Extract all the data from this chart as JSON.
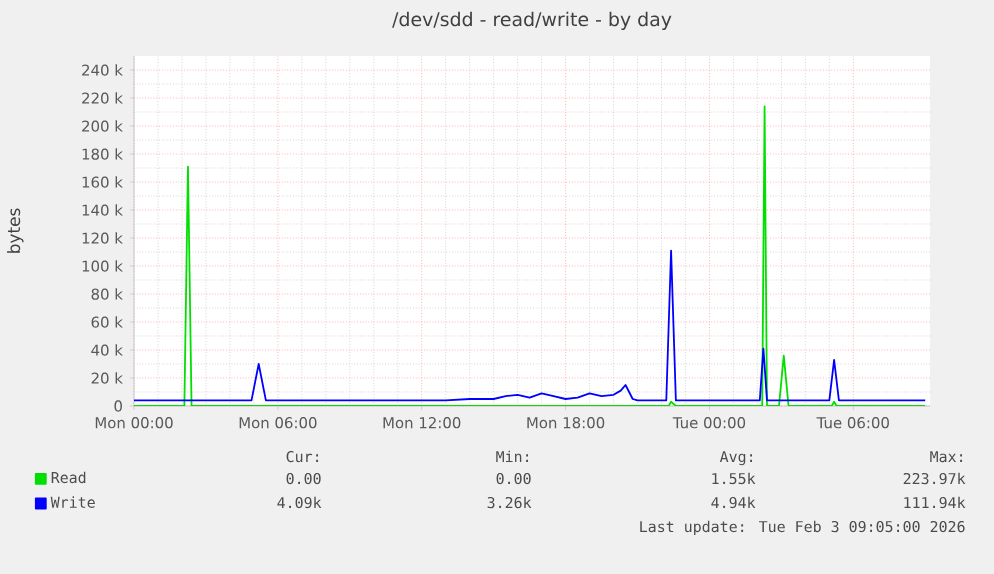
{
  "chart_data": {
    "type": "line",
    "title": "/dev/sdd - read/write - by day",
    "ylabel": "bytes",
    "xlim": [
      "2026-02-02T00:00",
      "2026-02-03T09:12"
    ],
    "ylim": [
      0,
      250000
    ],
    "xticks": [
      {
        "value": "2026-02-02T00:00",
        "label": "Mon 00:00"
      },
      {
        "value": "2026-02-02T06:00",
        "label": "Mon 06:00"
      },
      {
        "value": "2026-02-02T12:00",
        "label": "Mon 12:00"
      },
      {
        "value": "2026-02-02T18:00",
        "label": "Mon 18:00"
      },
      {
        "value": "2026-02-03T00:00",
        "label": "Tue 00:00"
      },
      {
        "value": "2026-02-03T06:00",
        "label": "Tue 06:00"
      }
    ],
    "yticks": [
      {
        "value": 0,
        "label": "0"
      },
      {
        "value": 20000,
        "label": "20 k"
      },
      {
        "value": 40000,
        "label": "40 k"
      },
      {
        "value": 60000,
        "label": "60 k"
      },
      {
        "value": 80000,
        "label": "80 k"
      },
      {
        "value": 100000,
        "label": "100 k"
      },
      {
        "value": 120000,
        "label": "120 k"
      },
      {
        "value": 140000,
        "label": "140 k"
      },
      {
        "value": 160000,
        "label": "160 k"
      },
      {
        "value": 180000,
        "label": "180 k"
      },
      {
        "value": 200000,
        "label": "200 k"
      },
      {
        "value": 220000,
        "label": "220 k"
      },
      {
        "value": 240000,
        "label": "240 k"
      }
    ],
    "grid": true,
    "legend": "bottom left",
    "marker": "none",
    "line_style": "solid",
    "series": [
      {
        "name": "Read",
        "color": "#00e000",
        "x": [
          "2026-02-02T00:00",
          "2026-02-02T02:06",
          "2026-02-02T02:15",
          "2026-02-02T02:24",
          "2026-02-02T22:18",
          "2026-02-02T22:24",
          "2026-02-02T22:36",
          "2026-02-03T02:12",
          "2026-02-03T02:18",
          "2026-02-03T02:24",
          "2026-02-03T02:54",
          "2026-02-03T03:06",
          "2026-02-03T03:18",
          "2026-02-03T05:06",
          "2026-02-03T05:12",
          "2026-02-03T05:18",
          "2026-02-03T09:00"
        ],
        "values": [
          0,
          0,
          171000,
          0,
          0,
          3000,
          0,
          0,
          214000,
          0,
          0,
          36000,
          0,
          0,
          3000,
          0,
          0
        ]
      },
      {
        "name": "Write",
        "color": "#0000ff",
        "x": [
          "2026-02-02T00:00",
          "2026-02-02T01:00",
          "2026-02-02T02:00",
          "2026-02-02T03:00",
          "2026-02-02T04:00",
          "2026-02-02T04:54",
          "2026-02-02T05:12",
          "2026-02-02T05:30",
          "2026-02-02T07:00",
          "2026-02-02T08:00",
          "2026-02-02T09:00",
          "2026-02-02T10:00",
          "2026-02-02T11:00",
          "2026-02-02T12:00",
          "2026-02-02T13:00",
          "2026-02-02T14:00",
          "2026-02-02T15:00",
          "2026-02-02T15:30",
          "2026-02-02T16:00",
          "2026-02-02T16:30",
          "2026-02-02T17:00",
          "2026-02-02T17:30",
          "2026-02-02T18:00",
          "2026-02-02T18:30",
          "2026-02-02T19:00",
          "2026-02-02T19:30",
          "2026-02-02T20:00",
          "2026-02-02T20:18",
          "2026-02-02T20:30",
          "2026-02-02T20:48",
          "2026-02-02T21:00",
          "2026-02-02T22:00",
          "2026-02-02T22:12",
          "2026-02-02T22:24",
          "2026-02-02T22:36",
          "2026-02-02T23:00",
          "2026-02-03T00:00",
          "2026-02-03T01:00",
          "2026-02-03T02:00",
          "2026-02-03T02:06",
          "2026-02-03T02:15",
          "2026-02-03T02:24",
          "2026-02-03T03:00",
          "2026-02-03T04:00",
          "2026-02-03T05:00",
          "2026-02-03T05:12",
          "2026-02-03T05:24",
          "2026-02-03T06:00",
          "2026-02-03T07:00",
          "2026-02-03T08:00",
          "2026-02-03T09:00"
        ],
        "values": [
          4000,
          4000,
          4000,
          4000,
          4000,
          4000,
          30000,
          4000,
          4000,
          4000,
          4000,
          4000,
          4000,
          4000,
          4000,
          5000,
          5000,
          7000,
          8000,
          6000,
          9000,
          7000,
          5000,
          6000,
          9000,
          7000,
          8000,
          11000,
          15000,
          5000,
          4000,
          4000,
          4000,
          111000,
          4000,
          4000,
          4000,
          4000,
          4000,
          4000,
          41000,
          4000,
          4000,
          4000,
          4000,
          33000,
          4000,
          4000,
          4000,
          4000,
          4000
        ]
      }
    ],
    "annotations": [
      "Cur:",
      "Min:",
      "Avg:",
      "Max:",
      "0.00",
      "0.00",
      "1.55k",
      "223.97k",
      "4.09k",
      "3.26k",
      "4.94k",
      "111.94k",
      "Last update: Tue Feb  3 09:05:00 2026"
    ]
  }
}
